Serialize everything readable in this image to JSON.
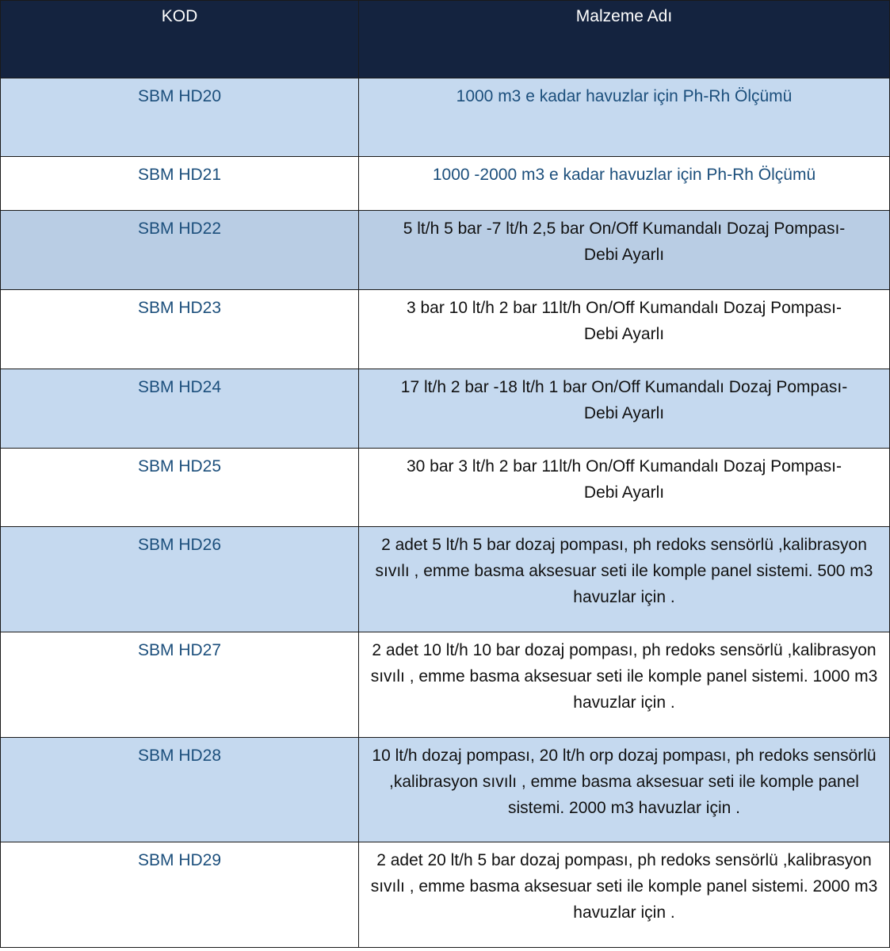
{
  "header": {
    "kod": "KOD",
    "name": "Malzeme Adı"
  },
  "colors": {
    "header_bg": "#14233f",
    "row_blue": "#c5d9ef",
    "code_text": "#1c4f7c"
  },
  "rows": [
    {
      "kod": "SBM HD20",
      "name": "1000 m3 e kadar havuzlar için Ph-Rh Ölçümü"
    },
    {
      "kod": "SBM HD21",
      "name": "1000 -2000 m3 e kadar havuzlar için Ph-Rh Ölçümü"
    },
    {
      "kod": "SBM HD22",
      "name": "5 lt/h 5 bar -7 lt/h 2,5 bar On/Off Kumandalı Dozaj Pompası- Debi Ayarlı"
    },
    {
      "kod": "SBM HD23",
      "name": "3 bar 10 lt/h 2 bar 11lt/h On/Off Kumandalı Dozaj Pompası- Debi Ayarlı"
    },
    {
      "kod": "SBM HD24",
      "name": "17 lt/h 2 bar -18 lt/h 1 bar On/Off Kumandalı Dozaj Pompası- Debi Ayarlı"
    },
    {
      "kod": "SBM HD25",
      "name": "30 bar 3 lt/h 2 bar 11lt/h On/Off Kumandalı Dozaj Pompası- Debi Ayarlı"
    },
    {
      "kod": "SBM HD26",
      "name": "2 adet 5 lt/h 5 bar dozaj pompası, ph redoks sensörlü ,kalibrasyon sıvılı , emme basma aksesuar seti ile komple panel sistemi. 500 m3 havuzlar için ."
    },
    {
      "kod": "SBM HD27",
      "name": "2 adet 10 lt/h 10 bar dozaj pompası, ph redoks sensörlü ,kalibrasyon sıvılı , emme basma aksesuar seti ile komple panel sistemi. 1000 m3 havuzlar için ."
    },
    {
      "kod": "SBM HD28",
      "name": "10 lt/h  dozaj pompası, 20 lt/h orp dozaj pompası, ph redoks sensörlü  ,kalibrasyon sıvılı , emme basma aksesuar seti ile komple panel sistemi. 2000 m3 havuzlar için ."
    },
    {
      "kod": "SBM HD29",
      "name": "2 adet 20 lt/h 5 bar dozaj pompası, ph redoks sensörlü ,kalibrasyon sıvılı , emme basma aksesuar seti ile komple panel sistemi. 2000 m3 havuzlar için ."
    }
  ]
}
